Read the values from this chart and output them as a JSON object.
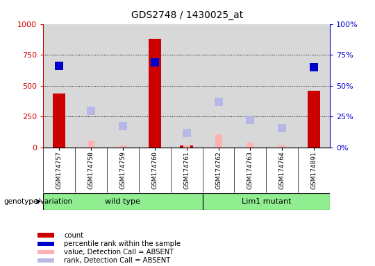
{
  "title": "GDS2748 / 1430025_at",
  "samples": [
    "GSM174757",
    "GSM174758",
    "GSM174759",
    "GSM174760",
    "GSM174761",
    "GSM174762",
    "GSM174763",
    "GSM174764",
    "GSM174891"
  ],
  "count_values": [
    440,
    null,
    null,
    880,
    20,
    null,
    null,
    null,
    460
  ],
  "count_color": "#cc0000",
  "percentile_rank": [
    66,
    null,
    null,
    69,
    null,
    null,
    null,
    null,
    65
  ],
  "percentile_rank_color": "#0000cc",
  "absent_value": [
    null,
    55,
    18,
    null,
    18,
    105,
    40,
    18,
    null
  ],
  "absent_value_color": "#ffb0b0",
  "absent_rank": [
    null,
    295,
    175,
    null,
    120,
    370,
    225,
    155,
    null
  ],
  "absent_rank_color": "#b8b8e8",
  "ylim_left": [
    0,
    1000
  ],
  "ylim_right": [
    0,
    100
  ],
  "yticks_left": [
    0,
    250,
    500,
    750,
    1000
  ],
  "yticks_right": [
    0,
    25,
    50,
    75,
    100
  ],
  "ytick_labels_left": [
    "0",
    "250",
    "500",
    "750",
    "1000"
  ],
  "ytick_labels_right": [
    "0%",
    "25%",
    "50%",
    "75%",
    "100%"
  ],
  "left_axis_color": "#cc0000",
  "right_axis_color": "#0000cc",
  "grid_lines": [
    250,
    500,
    750
  ],
  "genotype_groups": [
    {
      "label": "wild type",
      "start": 0,
      "end": 5
    },
    {
      "label": "Lim1 mutant",
      "start": 5,
      "end": 9
    }
  ],
  "genotype_label": "genotype/variation",
  "group_bg_color": "#90ee90",
  "plot_bg_color": "#d8d8d8",
  "legend_items": [
    {
      "color": "#cc0000",
      "label": "count"
    },
    {
      "color": "#0000cc",
      "label": "percentile rank within the sample"
    },
    {
      "color": "#ffb0b0",
      "label": "value, Detection Call = ABSENT"
    },
    {
      "color": "#b8b8e8",
      "label": "rank, Detection Call = ABSENT"
    }
  ],
  "bar_width": 0.4,
  "marker_size": 8
}
